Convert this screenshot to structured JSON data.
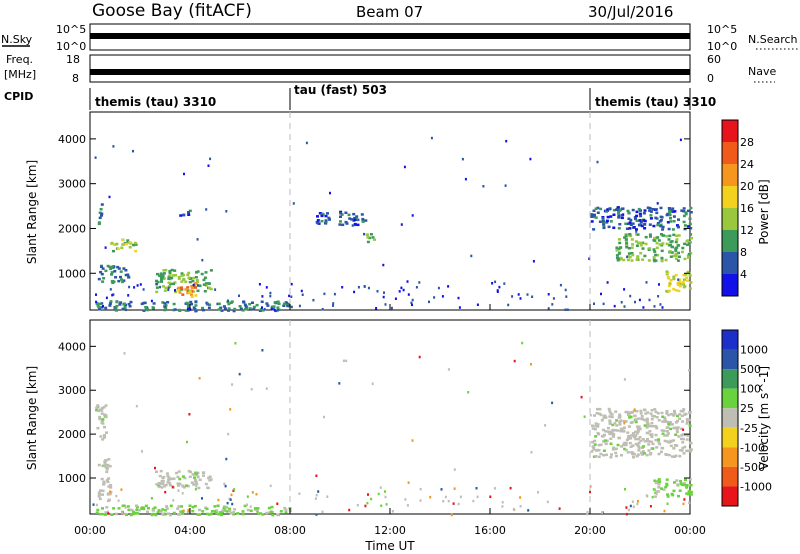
{
  "header": {
    "station": "Goose Bay (fitACF)",
    "beam": "Beam 07",
    "date": "30/Jul/2016"
  },
  "panels": {
    "nsky": {
      "label": "N.Sky",
      "ticks": [
        "10^5",
        "10^0"
      ]
    },
    "nsearch": {
      "label": "N.Search",
      "ticks": [
        "10^5",
        "10^0"
      ]
    },
    "freq": {
      "label_line1": "Freq.",
      "label_line2": "[MHz]",
      "ticks": [
        "18",
        "8"
      ]
    },
    "nave": {
      "label": "Nave",
      "ticks": [
        "60",
        "0"
      ]
    },
    "cpid": {
      "label": "CPID",
      "segments": [
        {
          "name": "themis (tau) 3310",
          "start_hour": 0,
          "end_hour": 8
        },
        {
          "name": "tau (fast) 503",
          "start_hour": 8,
          "end_hour": 20
        },
        {
          "name": "themis (tau) 3310",
          "start_hour": 20,
          "end_hour": 24
        }
      ]
    }
  },
  "x_axis": {
    "label": "Time UT",
    "ticks": [
      "00:00",
      "04:00",
      "08:00",
      "12:00",
      "16:00",
      "20:00",
      "00:00"
    ],
    "tick_hours": [
      0,
      4,
      8,
      12,
      16,
      20,
      24
    ]
  },
  "y_axis": {
    "label": "Slant Range [km]",
    "ticks": [
      1000,
      2000,
      3000,
      4000
    ],
    "range_km": [
      180,
      4600
    ]
  },
  "power_colorbar": {
    "label": "Power [dB]",
    "ticks": [
      "28",
      "24",
      "20",
      "16",
      "12",
      "8",
      "4"
    ],
    "colors": [
      "#e8141c",
      "#f05a1a",
      "#f5961e",
      "#f2d21e",
      "#9ac83c",
      "#3c9a5a",
      "#2a55a8",
      "#1212e8"
    ]
  },
  "velocity_colorbar": {
    "label": "Velocity [m s^-1]",
    "ticks": [
      "1000",
      "500",
      "100",
      "25",
      "-25",
      "-100",
      "-500",
      "-1000"
    ],
    "colors": [
      "#1c2fc8",
      "#2a55a8",
      "#3c9a5a",
      "#6ad23c",
      "#bebeb4",
      "#f2d21e",
      "#f5961e",
      "#f05a1a",
      "#e8141c"
    ]
  },
  "chart_data": {
    "type": "heatmap",
    "title": "Goose Bay (fitACF)  Beam 07  30/Jul/2016",
    "xlabel": "Time UT",
    "ylabel": "Slant Range [km]",
    "xlim_hours": [
      0,
      24
    ],
    "ylim_km": [
      180,
      4600
    ],
    "power_regions": [
      {
        "t0": 0.3,
        "t1": 0.5,
        "r0": 2100,
        "r1": 2600,
        "level": 8
      },
      {
        "t0": 0.8,
        "t1": 1.8,
        "r0": 1500,
        "r1": 1800,
        "level": 14
      },
      {
        "t0": 0.3,
        "t1": 1.5,
        "r0": 800,
        "r1": 1200,
        "level": 8
      },
      {
        "t0": 2.6,
        "t1": 4.8,
        "r0": 600,
        "r1": 1100,
        "level": 12
      },
      {
        "t0": 3.4,
        "t1": 4.2,
        "r0": 500,
        "r1": 800,
        "level": 22
      },
      {
        "t0": 0.2,
        "t1": 8.0,
        "r0": 180,
        "r1": 400,
        "level": 8
      },
      {
        "t0": 3.5,
        "t1": 4.0,
        "r0": 2300,
        "r1": 2450,
        "level": 6
      },
      {
        "t0": 9.0,
        "t1": 11.0,
        "r0": 2100,
        "r1": 2400,
        "level": 6
      },
      {
        "t0": 11.0,
        "t1": 11.5,
        "r0": 1700,
        "r1": 1900,
        "level": 12
      },
      {
        "t0": 20.0,
        "t1": 24.0,
        "r0": 2000,
        "r1": 2500,
        "level": 6
      },
      {
        "t0": 21.0,
        "t1": 24.0,
        "r0": 1300,
        "r1": 1900,
        "level": 12
      },
      {
        "t0": 23.0,
        "t1": 24.0,
        "r0": 600,
        "r1": 1100,
        "level": 16
      }
    ],
    "velocity_regions": [
      {
        "t0": 0.2,
        "t1": 0.6,
        "r0": 1800,
        "r1": 2700,
        "level": 0
      },
      {
        "t0": 0.3,
        "t1": 0.8,
        "r0": 500,
        "r1": 1500,
        "level": 60
      },
      {
        "t0": 2.6,
        "t1": 4.8,
        "r0": 800,
        "r1": 1200,
        "level": 0
      },
      {
        "t0": 0.2,
        "t1": 8.0,
        "r0": 180,
        "r1": 400,
        "level": 120
      },
      {
        "t0": 20.0,
        "t1": 24.0,
        "r0": 1500,
        "r1": 2600,
        "level": 0
      },
      {
        "t0": 22.5,
        "t1": 24.0,
        "r0": 600,
        "r1": 1000,
        "level": 150
      }
    ]
  }
}
